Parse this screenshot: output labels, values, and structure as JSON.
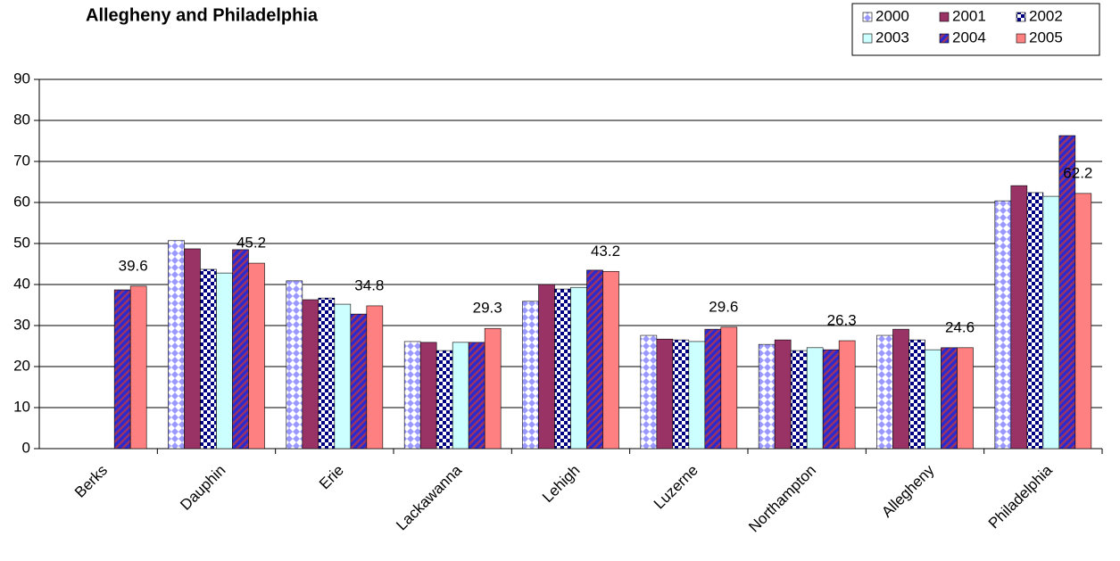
{
  "chart_data": {
    "type": "bar",
    "title": "Allegheny and Philadelphia",
    "categories": [
      "Berks",
      "Dauphin",
      "Erie",
      "Lackawanna",
      "Lehigh",
      "Luzerne",
      "Northampton",
      "Allegheny",
      "Philadelphia"
    ],
    "series": [
      {
        "name": "2000",
        "color": "#9999ff",
        "pattern": "diamond",
        "pattern_color": "#ffffff",
        "values": [
          null,
          50.7,
          40.9,
          26.1,
          35.9,
          27.6,
          25.4,
          27.6,
          60.4
        ]
      },
      {
        "name": "2001",
        "color": "#993366",
        "pattern": "solid",
        "values": [
          null,
          48.7,
          36.3,
          25.9,
          40.0,
          26.7,
          26.5,
          29.1,
          64.1
        ]
      },
      {
        "name": "2002",
        "color": "#000080",
        "pattern": "checker",
        "pattern_color": "#ffffff",
        "values": [
          null,
          43.7,
          36.7,
          23.9,
          38.9,
          26.5,
          23.9,
          26.5,
          62.4
        ]
      },
      {
        "name": "2003",
        "color": "#ccffff",
        "pattern": "solid",
        "values": [
          null,
          42.8,
          35.2,
          25.9,
          39.3,
          26.1,
          24.6,
          24.1,
          61.5
        ]
      },
      {
        "name": "2004",
        "color": "#2a2ad0",
        "pattern": "stripe",
        "pattern_color": "#993366",
        "values": [
          38.7,
          48.5,
          32.8,
          25.9,
          43.5,
          29.1,
          24.1,
          24.6,
          76.3
        ]
      },
      {
        "name": "2005",
        "color": "#ff8080",
        "pattern": "solid",
        "show_values": true,
        "values": [
          39.6,
          45.2,
          34.8,
          29.3,
          43.2,
          29.6,
          26.3,
          24.6,
          62.2
        ]
      }
    ],
    "ylim": [
      0,
      90
    ],
    "yticks": [
      0,
      10,
      20,
      30,
      40,
      50,
      60,
      70,
      80,
      90
    ],
    "grid": true,
    "legend": "top-right"
  }
}
